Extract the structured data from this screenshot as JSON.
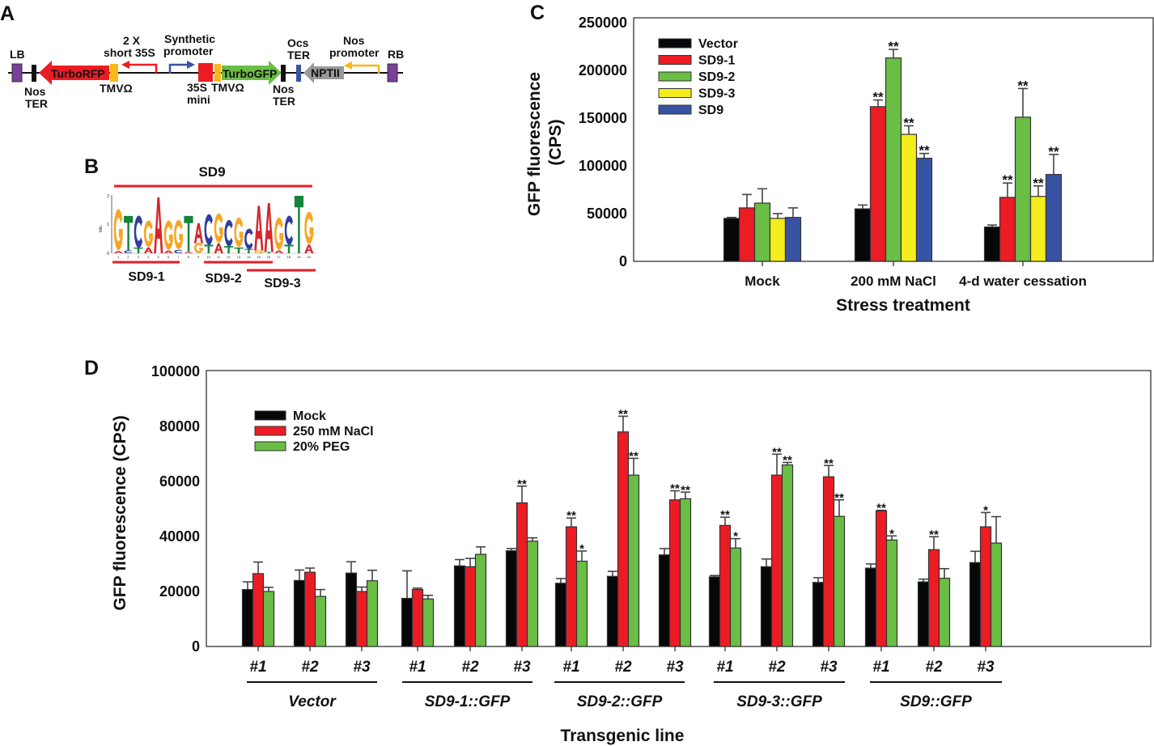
{
  "panel_labels": {
    "a": "A",
    "b": "B",
    "c": "C",
    "d": "D"
  },
  "panel_a": {
    "lb": "LB",
    "rb": "RB",
    "nos_ter_left_1": "Nos",
    "nos_ter_left_2": "TER",
    "turborfp": "TurboRFP",
    "tmv_left": "TMVΩ",
    "short35s_1": "2 X",
    "short35s_2": "short 35S",
    "synthetic_1": "Synthetic",
    "synthetic_2": "promoter",
    "mini_1": "35S",
    "mini_2": "mini",
    "tmv_right": "TMVΩ",
    "turbogfp": "TurboGFP",
    "nos_ter_right_1": "Nos",
    "nos_ter_right_2": "TER",
    "ocs_1": "Ocs",
    "ocs_2": "TER",
    "nptii": "NPTII",
    "nos_prom_1": "Nos",
    "nos_prom_2": "promoter"
  },
  "panel_b": {
    "title": "SD9",
    "segments": [
      "SD9-1",
      "SD9-2",
      "SD9-3"
    ],
    "y_axis_label": "bits",
    "y_ticks": [
      "0",
      "1",
      "2"
    ],
    "logo": [
      [
        [
          "A",
          0.08
        ],
        [
          "G",
          1.4
        ]
      ],
      [
        [
          "C",
          0.1
        ],
        [
          "T",
          1.2
        ]
      ],
      [
        [
          "T",
          0.2
        ],
        [
          "C",
          1.1
        ]
      ],
      [
        [
          "A",
          0.2
        ],
        [
          "G",
          0.9
        ]
      ],
      [
        [
          "A",
          1.95
        ]
      ],
      [
        [
          "A",
          0.1
        ],
        [
          "G",
          1.0
        ]
      ],
      [
        [
          "C",
          0.12
        ],
        [
          "G",
          1.0
        ]
      ],
      [
        [
          "A",
          0.05
        ],
        [
          "T",
          1.25
        ]
      ],
      [
        [
          "G",
          0.35
        ],
        [
          "A",
          0.7
        ]
      ],
      [
        [
          "T",
          0.3
        ],
        [
          "C",
          1.05
        ]
      ],
      [
        [
          "A",
          0.35
        ],
        [
          "G",
          1.0
        ]
      ],
      [
        [
          "T",
          0.25
        ],
        [
          "C",
          0.9
        ]
      ],
      [
        [
          "T",
          0.2
        ],
        [
          "G",
          1.0
        ]
      ],
      [
        [
          "T",
          0.15
        ],
        [
          "C",
          0.7
        ]
      ],
      [
        [
          "G",
          0.1
        ],
        [
          "A",
          1.55
        ]
      ],
      [
        [
          "T",
          0.05
        ],
        [
          "A",
          1.7
        ]
      ],
      [
        [
          "A",
          0.1
        ],
        [
          "G",
          1.1
        ]
      ],
      [
        [
          "T",
          0.3
        ],
        [
          "C",
          1.0
        ]
      ],
      [
        [
          "T",
          2.0
        ]
      ],
      [
        [
          "A",
          0.3
        ],
        [
          "G",
          1.1
        ]
      ]
    ]
  },
  "colors": {
    "vector": "#050708",
    "sd9_1": "#ec1c24",
    "sd9_2": "#6abd45",
    "sd9_3": "#f5ec1b",
    "sd9": "#3853a4",
    "mock": "#050708",
    "nacl": "#ec1c24",
    "peg": "#6abd45",
    "base_A": "#d7262b",
    "base_C": "#2e3da0",
    "base_G": "#f6a623",
    "base_T": "#14853b"
  },
  "chart_data": [
    {
      "panel": "C",
      "type": "bar",
      "title": "",
      "xlabel": "Stress treatment",
      "ylabel": "GFP fluorescence (CPS)",
      "ylabel_lines": [
        "GFP fluorescence",
        "(CPS)"
      ],
      "ylim": [
        0,
        250000
      ],
      "yticks": [
        "0",
        "50000",
        "100000",
        "150000",
        "200000",
        "250000"
      ],
      "legend_position": "top-left",
      "categories": [
        "Mock",
        "200 mM NaCl",
        "4-d water cessation"
      ],
      "series": [
        {
          "name": "Vector",
          "color_key": "vector",
          "values": [
            45000,
            55000,
            36000
          ],
          "errors": [
            1000,
            4000,
            2000
          ],
          "sig": [
            "",
            "",
            ""
          ]
        },
        {
          "name": "SD9-1",
          "color_key": "sd9_1",
          "values": [
            56000,
            162000,
            67000
          ],
          "errors": [
            14000,
            7000,
            15000
          ],
          "sig": [
            "",
            "**",
            "**"
          ]
        },
        {
          "name": "SD9-2",
          "color_key": "sd9_2",
          "values": [
            61000,
            213000,
            151000
          ],
          "errors": [
            15000,
            9000,
            30000
          ],
          "sig": [
            "",
            "**",
            "**"
          ]
        },
        {
          "name": "SD9-3",
          "color_key": "sd9_3",
          "values": [
            45000,
            133000,
            68000
          ],
          "errors": [
            5000,
            9000,
            11000
          ],
          "sig": [
            "",
            "**",
            "**"
          ]
        },
        {
          "name": "SD9",
          "color_key": "sd9",
          "values": [
            46000,
            108000,
            91000
          ],
          "errors": [
            10000,
            5000,
            21000
          ],
          "sig": [
            "",
            "**",
            "**"
          ]
        }
      ]
    },
    {
      "panel": "D",
      "type": "bar",
      "title": "",
      "xlabel": "Transgenic line",
      "ylabel": "GFP fluorescence (CPS)",
      "ylim": [
        0,
        100000
      ],
      "yticks": [
        "0",
        "20000",
        "40000",
        "60000",
        "80000",
        "100000"
      ],
      "legend_position": "top-left",
      "categories": [
        "#1",
        "#2",
        "#3",
        "#1",
        "#2",
        "#3",
        "#1",
        "#2",
        "#3",
        "#1",
        "#2",
        "#3",
        "#1",
        "#2",
        "#3"
      ],
      "groups": [
        "Vector",
        "SD9-1::GFP",
        "SD9-2::GFP",
        "SD9-3::GFP",
        "SD9::GFP"
      ],
      "series": [
        {
          "name": "Mock",
          "color_key": "mock",
          "values": [
            20700,
            24000,
            26700,
            17500,
            29300,
            34800,
            23000,
            25500,
            33300,
            25300,
            29000,
            23300,
            28500,
            23500,
            30500
          ],
          "errors": [
            2800,
            3800,
            4100,
            10000,
            2300,
            800,
            1700,
            1800,
            2300,
            500,
            2800,
            1700,
            1500,
            1000,
            4100
          ],
          "sig": [
            "",
            "",
            "",
            "",
            "",
            "",
            "",
            "",
            "",
            "",
            "",
            "",
            "",
            "",
            ""
          ]
        },
        {
          "name": "250 mM NaCl",
          "color_key": "nacl",
          "values": [
            26500,
            27000,
            20000,
            20700,
            29000,
            52200,
            43500,
            78000,
            53300,
            44000,
            62300,
            61700,
            49300,
            35200,
            43500
          ],
          "errors": [
            4200,
            1500,
            1600,
            500,
            3000,
            6100,
            3200,
            5700,
            3300,
            3000,
            7600,
            4100,
            200,
            4700,
            5200
          ],
          "sig": [
            "",
            "",
            "",
            "",
            "",
            "**",
            "**",
            "**",
            "**",
            "**",
            "**",
            "**",
            "**",
            "**",
            "*"
          ]
        },
        {
          "name": "20% PEG",
          "color_key": "peg",
          "values": [
            20000,
            18200,
            23900,
            17300,
            33500,
            38300,
            31000,
            62300,
            53700,
            35800,
            66000,
            47300,
            38700,
            24800,
            37600
          ],
          "errors": [
            1500,
            2500,
            3800,
            1300,
            2700,
            1200,
            3700,
            6100,
            2400,
            3400,
            900,
            6000,
            1500,
            3500,
            9600
          ],
          "sig": [
            "",
            "",
            "",
            "",
            "",
            "",
            "*",
            "**",
            "**",
            "*",
            "**",
            "**",
            "*",
            "",
            ""
          ]
        }
      ]
    }
  ]
}
